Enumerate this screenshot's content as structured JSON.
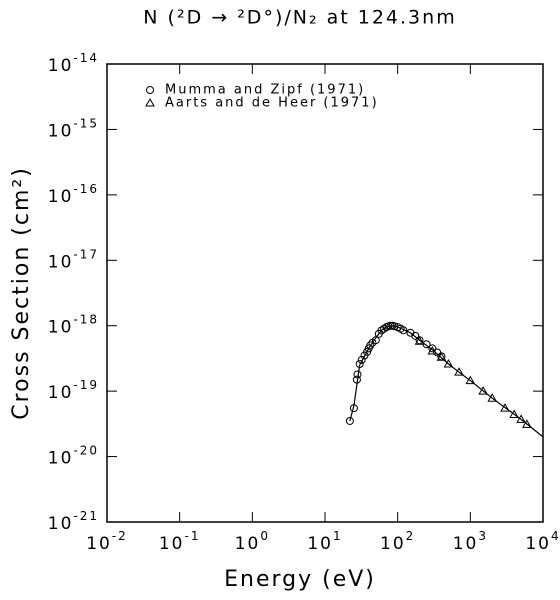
{
  "chart_data": {
    "type": "scatter",
    "title": "N (²D → ²D°)/N₂ at 124.3nm",
    "x_label": "Energy (eV)",
    "y_label": "Cross Section (cm²)",
    "log_x": true,
    "log_y": true,
    "legend": "upper left",
    "xlim": [
      0.01,
      10000
    ],
    "ylim": [
      1e-21,
      1e-14
    ],
    "xticks": [
      {
        "value": 0.01,
        "label": "10-2"
      },
      {
        "value": 0.1,
        "label": "10-1"
      },
      {
        "value": 1,
        "label": "100"
      },
      {
        "value": 10,
        "label": "101"
      },
      {
        "value": 100,
        "label": "102"
      },
      {
        "value": 1000,
        "label": "103"
      },
      {
        "value": 10000,
        "label": "104"
      }
    ],
    "yticks": [
      {
        "value": 1e-21,
        "label": "10-21"
      },
      {
        "value": 1e-20,
        "label": "10-20"
      },
      {
        "value": 1e-19,
        "label": "10-19"
      },
      {
        "value": 1e-18,
        "label": "10-18"
      },
      {
        "value": 1e-17,
        "label": "10-17"
      },
      {
        "value": 1e-16,
        "label": "10-16"
      },
      {
        "value": 1e-15,
        "label": "10-15"
      },
      {
        "value": 1e-14,
        "label": "10-14"
      }
    ],
    "series": [
      {
        "name": "Mumma and Zipf (1971)",
        "marker": "circle",
        "color": "#000000",
        "x": [
          22,
          25,
          27.5,
          28,
          30,
          32,
          35,
          38,
          40,
          42,
          45,
          50,
          55,
          60,
          65,
          70,
          75,
          80,
          85,
          90,
          100,
          110,
          120,
          150,
          175,
          200,
          250,
          300,
          350,
          400
        ],
        "values": [
          3.5e-20,
          5.5e-20,
          1.5e-19,
          1.8e-19,
          2.6e-19,
          3e-19,
          3.5e-19,
          4e-19,
          4.5e-19,
          5e-19,
          5.5e-19,
          6e-19,
          7.5e-19,
          8.5e-19,
          9e-19,
          9.5e-19,
          9.8e-19,
          1e-18,
          1e-18,
          9.8e-19,
          9.5e-19,
          9e-19,
          8.5e-19,
          7.8e-19,
          7e-19,
          6e-19,
          5.2e-19,
          4.5e-19,
          3.9e-19,
          3.4e-19
        ]
      },
      {
        "name": "Aarts and de Heer (1971)",
        "marker": "triangle",
        "color": "#000000",
        "x": [
          200,
          300,
          400,
          500,
          700,
          1000,
          1500,
          2000,
          3000,
          4000,
          5000,
          6000
        ],
        "values": [
          5.8e-19,
          4.1e-19,
          3.3e-19,
          2.6e-19,
          1.95e-19,
          1.45e-19,
          1e-19,
          7.8e-20,
          5.5e-20,
          4.4e-20,
          3.7e-20,
          3.1e-20
        ]
      },
      {
        "marker": "none",
        "color": "#000000",
        "x": [
          22,
          25,
          30,
          40,
          50,
          60,
          70,
          80,
          90,
          100,
          150,
          200,
          300,
          500,
          700,
          1000,
          2000,
          5000,
          10000
        ],
        "values": [
          3.5e-20,
          6e-20,
          2.5e-19,
          4.5e-19,
          6.5e-19,
          8.5e-19,
          9.5e-19,
          1e-18,
          1e-18,
          9.6e-19,
          7.8e-19,
          6e-19,
          4.3e-19,
          2.6e-19,
          1.95e-19,
          1.45e-19,
          7.8e-20,
          3.7e-20,
          2e-20
        ]
      }
    ]
  }
}
